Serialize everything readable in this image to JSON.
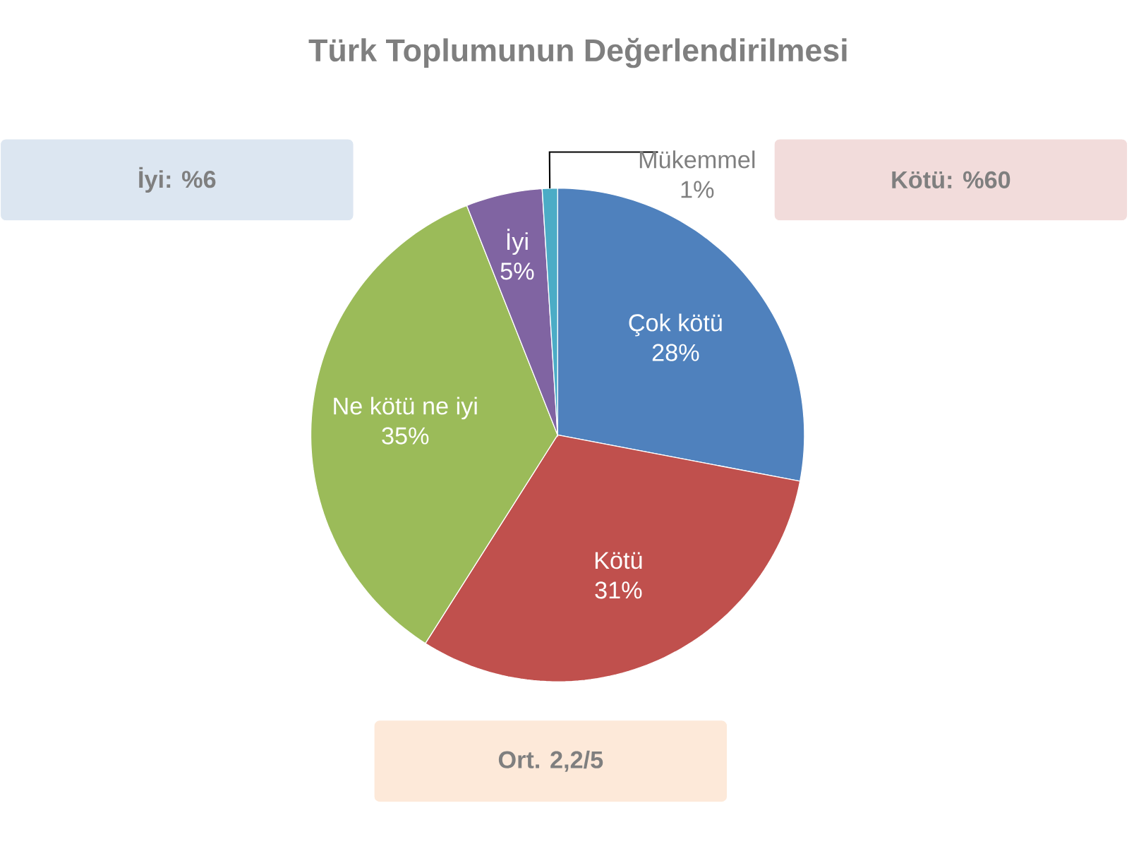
{
  "chart_data": {
    "type": "pie",
    "title": "Türk Toplumunun Değerlendirilmesi",
    "categories": [
      "Çok kötü",
      "Kötü",
      "Ne kötü ne iyi",
      "İyi",
      "Mükemmel"
    ],
    "values": [
      28,
      31,
      35,
      5,
      1
    ],
    "value_labels": [
      "28%",
      "31%",
      "35%",
      "5%",
      "1%"
    ],
    "colors": [
      "#4f81bd",
      "#c0504d",
      "#9bbb59",
      "#8064a2",
      "#4bacc6"
    ],
    "annotations": [
      "İyi: %6",
      "Kötü: %60",
      "Ort. 2,2/5"
    ]
  }
}
